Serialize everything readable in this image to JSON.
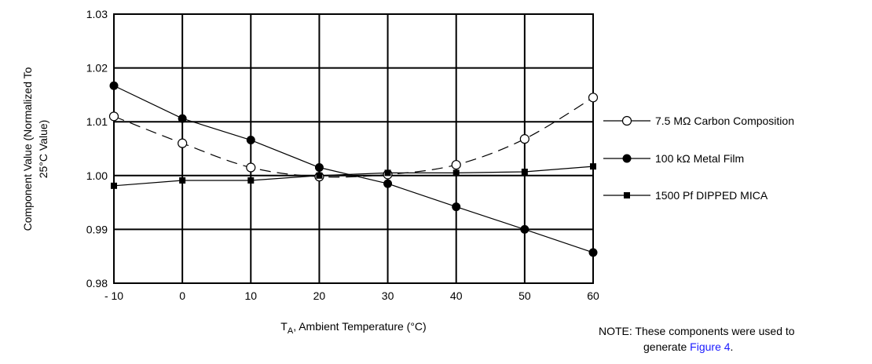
{
  "chart_data": {
    "type": "line",
    "x": [
      -10,
      0,
      10,
      20,
      30,
      40,
      50,
      60
    ],
    "x_tick_labels": [
      "- 10",
      "0",
      "10",
      "20",
      "30",
      "40",
      "50",
      "60"
    ],
    "y_tick_labels": [
      "1.03",
      "1.02",
      "1.01",
      "1.00",
      "0.99",
      "0.98"
    ],
    "y_ticks": [
      1.03,
      1.02,
      1.01,
      1.0,
      0.99,
      0.98
    ],
    "xlim": [
      -10,
      60
    ],
    "ylim": [
      0.98,
      1.03
    ],
    "grid": true,
    "xlabel_main": "T",
    "xlabel_sub": "A",
    "xlabel_rest": ", Ambient Temperature (°C)",
    "ylabel_line1": "Component Value (Normalized To",
    "ylabel_line2": "25°C Value)",
    "legend_position": "right",
    "series": [
      {
        "name": "7.5 MΩ Carbon Composition",
        "marker": "open-circle",
        "line": "dashed-curve",
        "points": [
          [
            -10,
            1.011
          ],
          [
            0,
            1.006
          ],
          [
            10,
            1.0015
          ],
          [
            20,
            0.9998
          ],
          [
            30,
            1.0002
          ],
          [
            40,
            1.002
          ],
          [
            50,
            1.0068
          ],
          [
            60,
            1.0145
          ]
        ]
      },
      {
        "name": "100 kΩ Metal Film",
        "marker": "filled-circle",
        "line": "solid",
        "points": [
          [
            -10,
            1.0167
          ],
          [
            0,
            1.0106
          ],
          [
            10,
            1.0066
          ],
          [
            20,
            1.0015
          ],
          [
            30,
            0.9985
          ],
          [
            40,
            0.9942
          ],
          [
            50,
            0.99
          ],
          [
            60,
            0.9857
          ]
        ]
      },
      {
        "name": "1500 Pf DIPPED MICA",
        "marker": "filled-square",
        "line": "solid",
        "points": [
          [
            -10,
            0.9981
          ],
          [
            0,
            0.9991
          ],
          [
            10,
            0.9991
          ],
          [
            20,
            1.0
          ],
          [
            30,
            1.0005
          ],
          [
            40,
            1.0005
          ],
          [
            50,
            1.0007
          ],
          [
            60,
            1.0017
          ]
        ]
      }
    ]
  },
  "note": {
    "prefix": "NOTE:",
    "bold_part": " Thes",
    "text_part": "e components were used to",
    "line2_pre": "generate ",
    "link": "Figure 4",
    "line2_post": "."
  }
}
